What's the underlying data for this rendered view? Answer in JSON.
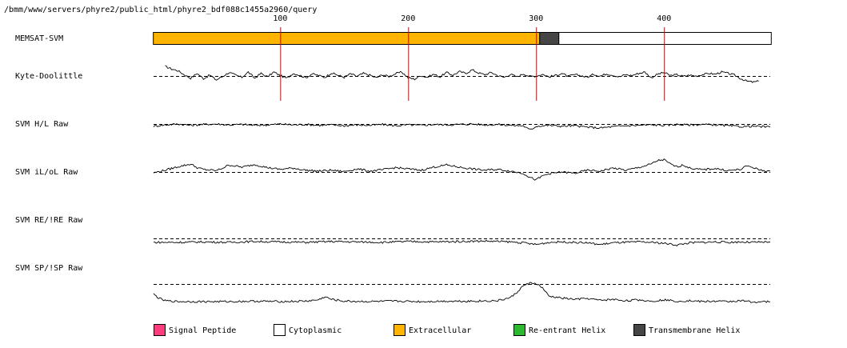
{
  "path_text": "/bmm/www/servers/phyre2/public_html/phyre2_bdf088c1455a2960/query",
  "chart_data": {
    "type": "line",
    "title": "",
    "x_range": [
      1,
      483
    ],
    "x_ticks": [
      100,
      200,
      300,
      400
    ],
    "grid_lines_at": [
      100,
      200,
      300,
      400
    ],
    "grid_color": "#cc0000",
    "segment_track": {
      "label": "MEMSAT-SVM",
      "segments": [
        {
          "start": 1,
          "end": 302,
          "class": "Extracellular"
        },
        {
          "start": 303,
          "end": 317,
          "class": "Transmembrane Helix"
        },
        {
          "start": 318,
          "end": 483,
          "class": "Cytoplasmic"
        }
      ]
    },
    "tracks": [
      {
        "name": "Kyte-Doolittle",
        "baseline_y": 0,
        "ylim": [
          -2.5,
          2.5
        ],
        "x_start": 10,
        "x_end": 474,
        "dashed_x_end": 483,
        "profile": [
          [
            10,
            2.2
          ],
          [
            15,
            1.6
          ],
          [
            20,
            1.2
          ],
          [
            25,
            0.3
          ],
          [
            30,
            -0.5
          ],
          [
            35,
            0.6
          ],
          [
            40,
            -0.6
          ],
          [
            45,
            0.2
          ],
          [
            50,
            -0.9
          ],
          [
            55,
            -0.1
          ],
          [
            60,
            0.8
          ],
          [
            65,
            0.2
          ],
          [
            70,
            -0.3
          ],
          [
            75,
            0.9
          ],
          [
            80,
            -0.5
          ],
          [
            85,
            0.6
          ],
          [
            90,
            -0.2
          ],
          [
            95,
            0.9
          ],
          [
            100,
            0.1
          ],
          [
            105,
            -0.5
          ],
          [
            110,
            0.6
          ],
          [
            115,
            0.2
          ],
          [
            120,
            -0.4
          ],
          [
            125,
            0.5
          ],
          [
            130,
            0.1
          ],
          [
            135,
            -0.3
          ],
          [
            140,
            0.7
          ],
          [
            145,
            0.2
          ],
          [
            150,
            -0.3
          ],
          [
            155,
            0.5
          ],
          [
            160,
            -0.1
          ],
          [
            165,
            0.6
          ],
          [
            170,
            0.2
          ],
          [
            175,
            -0.4
          ],
          [
            180,
            0.3
          ],
          [
            185,
            -0.1
          ],
          [
            190,
            0.5
          ],
          [
            195,
            0.9
          ],
          [
            200,
            -0.4
          ],
          [
            205,
            -0.7
          ],
          [
            210,
            0.1
          ],
          [
            215,
            -0.3
          ],
          [
            220,
            0.4
          ],
          [
            225,
            -0.2
          ],
          [
            230,
            0.8
          ],
          [
            235,
            0.2
          ],
          [
            240,
            1.0
          ],
          [
            245,
            0.6
          ],
          [
            250,
            1.4
          ],
          [
            255,
            0.7
          ],
          [
            260,
            0.3
          ],
          [
            265,
            0.8
          ],
          [
            270,
            0.1
          ],
          [
            275,
            -0.3
          ],
          [
            280,
            0.4
          ],
          [
            285,
            -0.2
          ],
          [
            290,
            0.5
          ],
          [
            295,
            -0.1
          ],
          [
            300,
            0.0
          ],
          [
            305,
            0.4
          ],
          [
            310,
            -0.2
          ],
          [
            315,
            0.1
          ],
          [
            320,
            0.6
          ],
          [
            325,
            -0.1
          ],
          [
            330,
            0.3
          ],
          [
            335,
            0.1
          ],
          [
            340,
            -0.3
          ],
          [
            345,
            0.4
          ],
          [
            350,
            0.0
          ],
          [
            355,
            0.5
          ],
          [
            360,
            0.2
          ],
          [
            365,
            -0.2
          ],
          [
            370,
            0.3
          ],
          [
            375,
            0.1
          ],
          [
            380,
            0.6
          ],
          [
            385,
            0.9
          ],
          [
            390,
            -0.4
          ],
          [
            395,
            0.4
          ],
          [
            400,
            0.8
          ],
          [
            405,
            0.1
          ],
          [
            410,
            0.3
          ],
          [
            415,
            -0.1
          ],
          [
            420,
            0.2
          ],
          [
            425,
            0.0
          ],
          [
            430,
            0.3
          ],
          [
            435,
            0.6
          ],
          [
            440,
            0.4
          ],
          [
            445,
            0.9
          ],
          [
            450,
            0.6
          ],
          [
            455,
            0.2
          ],
          [
            460,
            -0.6
          ],
          [
            465,
            -1.2
          ],
          [
            470,
            -1.4
          ],
          [
            474,
            -1.2
          ]
        ]
      },
      {
        "name": "SVM H/L Raw",
        "baseline_y": 0,
        "ylim": [
          -2.5,
          2.5
        ],
        "x_start": 1,
        "x_end": 483,
        "dashed_x_end": 483,
        "profile": [
          [
            1,
            -0.5
          ],
          [
            10,
            -0.2
          ],
          [
            20,
            0.0
          ],
          [
            30,
            -0.3
          ],
          [
            40,
            -0.1
          ],
          [
            50,
            0.0
          ],
          [
            60,
            -0.2
          ],
          [
            70,
            -0.1
          ],
          [
            80,
            -0.3
          ],
          [
            90,
            -0.2
          ],
          [
            100,
            0.0
          ],
          [
            110,
            -0.2
          ],
          [
            120,
            -0.1
          ],
          [
            130,
            -0.3
          ],
          [
            140,
            -0.2
          ],
          [
            150,
            -0.4
          ],
          [
            160,
            -0.2
          ],
          [
            170,
            -0.3
          ],
          [
            180,
            -0.1
          ],
          [
            190,
            -0.4
          ],
          [
            200,
            -0.2
          ],
          [
            210,
            -0.3
          ],
          [
            220,
            -0.1
          ],
          [
            230,
            -0.2
          ],
          [
            240,
            -0.1
          ],
          [
            250,
            0.0
          ],
          [
            260,
            -0.2
          ],
          [
            270,
            -0.1
          ],
          [
            280,
            -0.3
          ],
          [
            290,
            -0.4
          ],
          [
            292,
            -0.8
          ],
          [
            295,
            -1.3
          ],
          [
            298,
            -0.9
          ],
          [
            300,
            -0.5
          ],
          [
            310,
            -0.3
          ],
          [
            320,
            -0.5
          ],
          [
            330,
            -0.4
          ],
          [
            340,
            -0.7
          ],
          [
            350,
            -0.9
          ],
          [
            360,
            -0.6
          ],
          [
            370,
            -0.4
          ],
          [
            380,
            -0.3
          ],
          [
            390,
            -0.2
          ],
          [
            400,
            -0.3
          ],
          [
            410,
            -0.1
          ],
          [
            420,
            -0.2
          ],
          [
            430,
            -0.1
          ],
          [
            440,
            -0.2
          ],
          [
            450,
            -0.4
          ],
          [
            460,
            -0.6
          ],
          [
            470,
            -0.5
          ],
          [
            483,
            -0.7
          ]
        ]
      },
      {
        "name": "SVM iL/oL Raw",
        "baseline_y": 0,
        "ylim": [
          -2.5,
          2.5
        ],
        "x_start": 1,
        "x_end": 483,
        "dashed_x_end": 483,
        "profile": [
          [
            1,
            -0.2
          ],
          [
            10,
            0.4
          ],
          [
            20,
            1.2
          ],
          [
            30,
            1.8
          ],
          [
            35,
            1.0
          ],
          [
            40,
            0.6
          ],
          [
            50,
            0.3
          ],
          [
            55,
            0.9
          ],
          [
            60,
            1.6
          ],
          [
            70,
            1.1
          ],
          [
            80,
            1.7
          ],
          [
            90,
            1.0
          ],
          [
            100,
            0.6
          ],
          [
            110,
            0.9
          ],
          [
            120,
            0.4
          ],
          [
            130,
            0.2
          ],
          [
            140,
            0.4
          ],
          [
            150,
            0.1
          ],
          [
            160,
            0.7
          ],
          [
            170,
            0.2
          ],
          [
            180,
            0.5
          ],
          [
            190,
            1.0
          ],
          [
            200,
            0.7
          ],
          [
            210,
            0.4
          ],
          [
            220,
            1.1
          ],
          [
            230,
            1.6
          ],
          [
            240,
            1.1
          ],
          [
            250,
            0.7
          ],
          [
            260,
            0.4
          ],
          [
            270,
            0.6
          ],
          [
            280,
            0.2
          ],
          [
            290,
            -0.3
          ],
          [
            295,
            -1.2
          ],
          [
            300,
            -1.8
          ],
          [
            305,
            -0.9
          ],
          [
            310,
            -0.4
          ],
          [
            320,
            0.0
          ],
          [
            330,
            -0.3
          ],
          [
            340,
            0.4
          ],
          [
            350,
            0.2
          ],
          [
            360,
            0.9
          ],
          [
            370,
            0.4
          ],
          [
            380,
            1.0
          ],
          [
            390,
            1.8
          ],
          [
            395,
            2.6
          ],
          [
            400,
            2.8
          ],
          [
            405,
            1.8
          ],
          [
            410,
            1.2
          ],
          [
            415,
            1.6
          ],
          [
            420,
            0.9
          ],
          [
            430,
            0.5
          ],
          [
            440,
            0.8
          ],
          [
            450,
            0.3
          ],
          [
            460,
            0.6
          ],
          [
            465,
            1.4
          ],
          [
            470,
            1.0
          ],
          [
            475,
            0.4
          ],
          [
            483,
            0.2
          ]
        ]
      },
      {
        "name": "SVM RE/!RE Raw",
        "baseline_y": 0,
        "ylim": [
          -2.5,
          2.5
        ],
        "x_start": 1,
        "x_end": 483,
        "dashed_x_end": 483,
        "profile": [
          [
            1,
            -0.9
          ],
          [
            20,
            -0.9
          ],
          [
            40,
            -0.8
          ],
          [
            60,
            -0.9
          ],
          [
            80,
            -0.7
          ],
          [
            100,
            -0.8
          ],
          [
            120,
            -0.9
          ],
          [
            140,
            -0.7
          ],
          [
            160,
            -0.8
          ],
          [
            180,
            -0.9
          ],
          [
            200,
            -0.7
          ],
          [
            220,
            -0.8
          ],
          [
            240,
            -0.7
          ],
          [
            260,
            -0.6
          ],
          [
            280,
            -0.8
          ],
          [
            290,
            -1.0
          ],
          [
            300,
            -1.4
          ],
          [
            310,
            -0.9
          ],
          [
            320,
            -0.8
          ],
          [
            330,
            -0.9
          ],
          [
            340,
            -1.0
          ],
          [
            350,
            -1.4
          ],
          [
            360,
            -1.0
          ],
          [
            370,
            -0.9
          ],
          [
            380,
            -0.8
          ],
          [
            390,
            -0.9
          ],
          [
            400,
            -1.1
          ],
          [
            410,
            -1.5
          ],
          [
            420,
            -1.0
          ],
          [
            430,
            -0.9
          ],
          [
            440,
            -0.8
          ],
          [
            450,
            -0.9
          ],
          [
            460,
            -0.8
          ],
          [
            470,
            -0.9
          ],
          [
            483,
            -0.8
          ]
        ]
      },
      {
        "name": "SVM SP/!SP Raw",
        "baseline_y": 0,
        "ylim": [
          -2.5,
          2.5
        ],
        "x_start": 1,
        "x_end": 483,
        "dashed_x_end": 483,
        "profile": [
          [
            1,
            -2.3
          ],
          [
            5,
            -3.2
          ],
          [
            10,
            -3.8
          ],
          [
            20,
            -4.0
          ],
          [
            40,
            -4.0
          ],
          [
            60,
            -4.0
          ],
          [
            80,
            -3.9
          ],
          [
            100,
            -4.0
          ],
          [
            120,
            -3.9
          ],
          [
            130,
            -3.6
          ],
          [
            135,
            -2.9
          ],
          [
            140,
            -3.5
          ],
          [
            150,
            -3.9
          ],
          [
            170,
            -4.0
          ],
          [
            190,
            -3.9
          ],
          [
            210,
            -4.0
          ],
          [
            230,
            -3.9
          ],
          [
            250,
            -3.9
          ],
          [
            270,
            -3.8
          ],
          [
            280,
            -3.1
          ],
          [
            285,
            -1.9
          ],
          [
            290,
            -0.4
          ],
          [
            295,
            0.2
          ],
          [
            300,
            0.1
          ],
          [
            305,
            -0.9
          ],
          [
            310,
            -2.8
          ],
          [
            320,
            -3.2
          ],
          [
            330,
            -3.5
          ],
          [
            340,
            -3.3
          ],
          [
            350,
            -3.7
          ],
          [
            360,
            -3.5
          ],
          [
            370,
            -3.8
          ],
          [
            380,
            -3.6
          ],
          [
            390,
            -3.9
          ],
          [
            400,
            -3.6
          ],
          [
            410,
            -3.9
          ],
          [
            420,
            -3.8
          ],
          [
            430,
            -4.0
          ],
          [
            440,
            -3.9
          ],
          [
            450,
            -4.0
          ],
          [
            460,
            -3.8
          ],
          [
            470,
            -4.1
          ],
          [
            483,
            -4.0
          ]
        ]
      }
    ],
    "legend": {
      "placement": "bottom",
      "items": [
        {
          "label": "Signal Peptide",
          "color": "#ff3c7d"
        },
        {
          "label": "Cytoplasmic",
          "color": "#ffffff"
        },
        {
          "label": "Extracellular",
          "color": "#ffb400"
        },
        {
          "label": "Re-entrant Helix",
          "color": "#2db92d"
        },
        {
          "label": "Transmembrane Helix",
          "color": "#464646"
        }
      ]
    }
  }
}
